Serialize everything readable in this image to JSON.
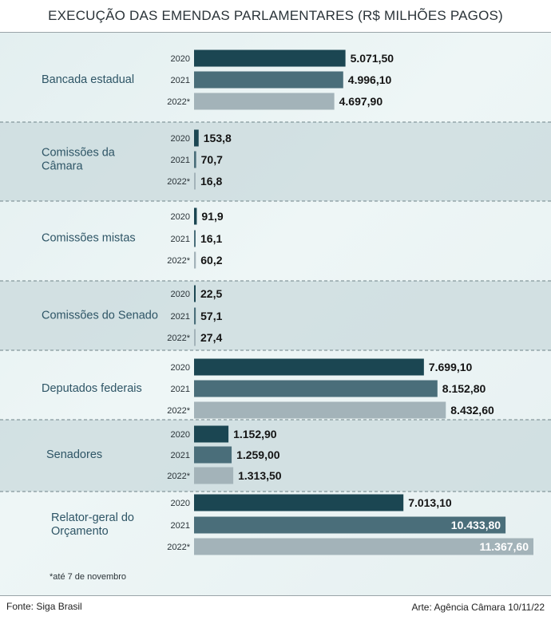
{
  "title": "EXECUÇÃO DAS EMENDAS PARLAMENTARES (R$ MILHÕES PAGOS)",
  "footnote": "*até 7 de novembro",
  "footer": {
    "source": "Fonte: Siga Brasil",
    "art": "Arte: Agência Câmara 10/11/22"
  },
  "colors": {
    "y2020": "#1b4652",
    "y2021": "#4a6e7a",
    "y2022": "#a3b3b9",
    "band": "#c9dadc",
    "category": "#2e5566"
  },
  "chart_data": {
    "type": "bar",
    "orientation": "horizontal",
    "series_labels": [
      "2020",
      "2021",
      "2022*"
    ],
    "groups": [
      {
        "label": [
          "Bancada estadual"
        ],
        "values": [
          5071.5,
          4996.1,
          4697.9
        ],
        "value_labels": [
          "5.071,50",
          "4.996,10",
          "4.697,90"
        ]
      },
      {
        "label": [
          "Comissões da",
          "Câmara"
        ],
        "values": [
          153.8,
          70.7,
          16.8
        ],
        "value_labels": [
          "153,8",
          "70,7",
          "16,8"
        ]
      },
      {
        "label": [
          "Comissões mistas"
        ],
        "values": [
          91.9,
          16.1,
          60.2
        ],
        "value_labels": [
          "91,9",
          "16,1",
          "60,2"
        ]
      },
      {
        "label": [
          "Comissões do Senado"
        ],
        "values": [
          22.5,
          57.1,
          27.4
        ],
        "value_labels": [
          "22,5",
          "57,1",
          "27,4"
        ]
      },
      {
        "label": [
          "Deputados federais"
        ],
        "values": [
          7699.1,
          8152.8,
          8432.6
        ],
        "value_labels": [
          "7.699,10",
          "8.152,80",
          "8.432,60"
        ]
      },
      {
        "label": [
          "Senadores"
        ],
        "values": [
          1152.9,
          1259.0,
          1313.5
        ],
        "value_labels": [
          "1.152,90",
          "1.259,00",
          "1.313,50"
        ]
      },
      {
        "label": [
          "Relator-geral do",
          "Orçamento"
        ],
        "values": [
          7013.1,
          10433.8,
          11367.6
        ],
        "value_labels": [
          "7.013,10",
          "10.433,80",
          "11.367,60"
        ]
      }
    ],
    "xlim": [
      0,
      11367.6
    ]
  }
}
